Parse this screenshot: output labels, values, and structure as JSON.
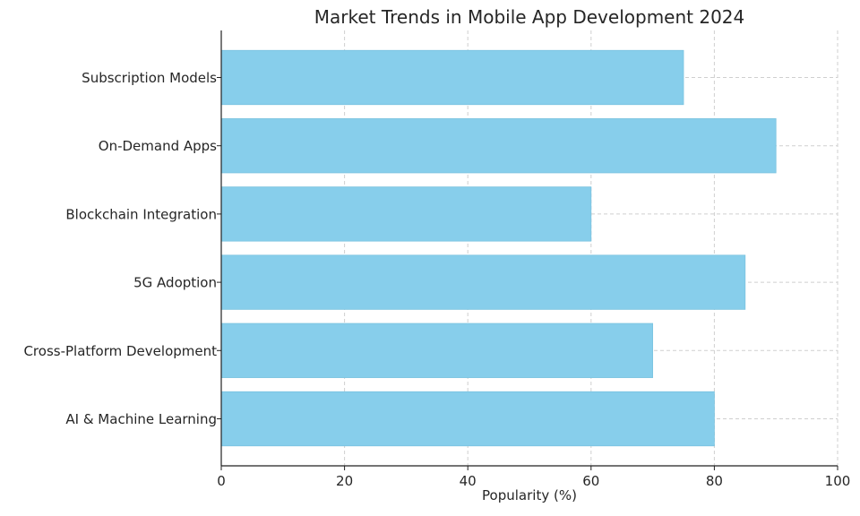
{
  "chart_data": {
    "type": "bar",
    "orientation": "horizontal",
    "title": "Market Trends in Mobile App Development 2024",
    "xlabel": "Popularity (%)",
    "ylabel": "",
    "categories": [
      "AI & Machine Learning",
      "Cross-Platform Development",
      "5G Adoption",
      "Blockchain Integration",
      "On-Demand Apps",
      "Subscription Models"
    ],
    "values": [
      80,
      70,
      85,
      60,
      90,
      75
    ],
    "xlim": [
      0,
      100
    ],
    "xticks": [
      0,
      20,
      40,
      60,
      80,
      100
    ],
    "grid": true,
    "bar_color": "#87CEEB"
  }
}
